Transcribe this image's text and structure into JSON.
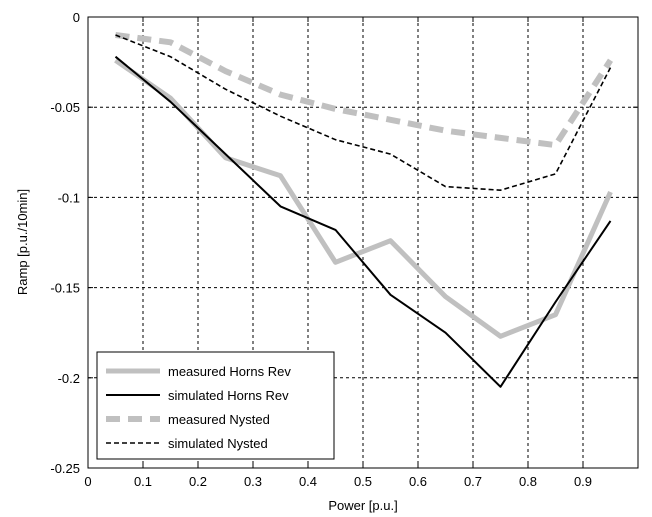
{
  "chart_data": {
    "type": "line",
    "title": "",
    "xlabel": "Power [p.u.]",
    "ylabel": "Ramp [p.u./10min]",
    "xlim": [
      0,
      1
    ],
    "ylim": [
      -0.25,
      0
    ],
    "x_ticks": [
      "0",
      "0.1",
      "0.2",
      "0.3",
      "0.4",
      "0.5",
      "0.6",
      "0.7",
      "0.8",
      "0.9"
    ],
    "y_ticks": [
      "0",
      "-0.05",
      "-0.1",
      "-0.15",
      "-0.2",
      "-0.25"
    ],
    "grid": true,
    "legend_position": "bottom-left",
    "series": [
      {
        "name": "measured Horns Rev",
        "color": "#c0c0c0",
        "style": "solid-thick",
        "x": [
          0.05,
          0.15,
          0.25,
          0.35,
          0.45,
          0.55,
          0.65,
          0.75,
          0.85,
          0.95
        ],
        "y": [
          -0.024,
          -0.045,
          -0.078,
          -0.088,
          -0.136,
          -0.124,
          -0.155,
          -0.177,
          -0.165,
          -0.097
        ]
      },
      {
        "name": "simulated Horns Rev",
        "color": "#000000",
        "style": "solid",
        "x": [
          0.05,
          0.15,
          0.25,
          0.35,
          0.45,
          0.55,
          0.65,
          0.75,
          0.85,
          0.95
        ],
        "y": [
          -0.022,
          -0.047,
          -0.076,
          -0.105,
          -0.118,
          -0.154,
          -0.175,
          -0.205,
          -0.158,
          -0.113
        ]
      },
      {
        "name": "measured Nysted",
        "color": "#c0c0c0",
        "style": "dashed-thick",
        "x": [
          0.05,
          0.15,
          0.25,
          0.35,
          0.45,
          0.55,
          0.65,
          0.75,
          0.85,
          0.95
        ],
        "y": [
          -0.01,
          -0.014,
          -0.03,
          -0.043,
          -0.051,
          -0.057,
          -0.063,
          -0.067,
          -0.071,
          -0.024
        ]
      },
      {
        "name": "simulated Nysted",
        "color": "#000000",
        "style": "dashed",
        "x": [
          0.05,
          0.15,
          0.25,
          0.35,
          0.45,
          0.55,
          0.65,
          0.75,
          0.85,
          0.95
        ],
        "y": [
          -0.01,
          -0.022,
          -0.04,
          -0.055,
          -0.068,
          -0.076,
          -0.094,
          -0.096,
          -0.087,
          -0.028
        ]
      }
    ]
  }
}
